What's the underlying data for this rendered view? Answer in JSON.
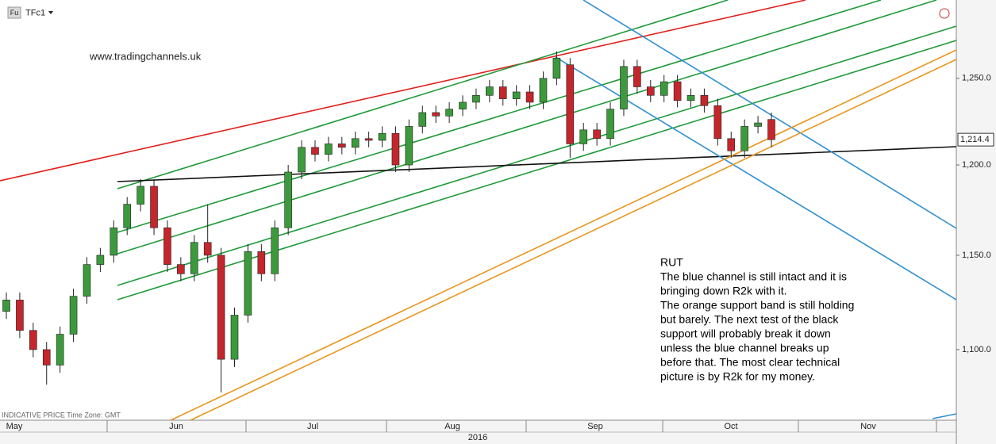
{
  "chart_data": {
    "type": "candlestick",
    "symbol_badge": "Fu",
    "symbol": "TFc1",
    "watermark": "www.tradingchannels.uk",
    "footer": "INDICATIVE PRICE   Time Zone: GMT",
    "year": "2016",
    "months": [
      "May",
      "Jun",
      "Jul",
      "Aug",
      "Sep",
      "Oct",
      "Nov"
    ],
    "annotation_lines": [
      "RUT",
      "The blue channel is still intact and it is",
      "bringing down R2k with it.",
      "The orange support band is still holding",
      "but barely. The next test of the black",
      "support will probably break it down",
      "unless the blue channel breaks up",
      "before that. The most clear technical",
      "picture is by R2k for my money."
    ],
    "open": [
      1120,
      1126,
      1110,
      1100,
      1092,
      1108,
      1128,
      1145,
      1150,
      1165,
      1178,
      1188,
      1165,
      1145,
      1140,
      1157,
      1150,
      1095,
      1118,
      1152,
      1140,
      1165,
      1196,
      1210,
      1206,
      1212,
      1210,
      1215,
      1214,
      1218,
      1200,
      1222,
      1230,
      1228,
      1232,
      1236,
      1240,
      1245,
      1238,
      1242,
      1236,
      1250,
      1258,
      1212,
      1220,
      1215,
      1232,
      1257,
      1245,
      1240,
      1248,
      1237,
      1240,
      1234,
      1215,
      1208,
      1222,
      1226
    ],
    "high": [
      1130,
      1130,
      1114,
      1104,
      1112,
      1132,
      1149,
      1154,
      1169,
      1182,
      1192,
      1192,
      1169,
      1149,
      1161,
      1178,
      1154,
      1122,
      1156,
      1156,
      1169,
      1200,
      1214,
      1214,
      1216,
      1216,
      1219,
      1219,
      1222,
      1222,
      1226,
      1234,
      1234,
      1236,
      1240,
      1244,
      1249,
      1249,
      1246,
      1246,
      1254,
      1266,
      1262,
      1224,
      1224,
      1236,
      1261,
      1261,
      1249,
      1252,
      1252,
      1244,
      1244,
      1238,
      1219,
      1226,
      1228,
      1230
    ],
    "low": [
      1116,
      1106,
      1096,
      1082,
      1088,
      1104,
      1124,
      1141,
      1146,
      1161,
      1174,
      1161,
      1141,
      1136,
      1136,
      1146,
      1078,
      1091,
      1114,
      1136,
      1136,
      1161,
      1192,
      1202,
      1202,
      1206,
      1206,
      1210,
      1210,
      1196,
      1196,
      1218,
      1224,
      1224,
      1228,
      1232,
      1236,
      1234,
      1234,
      1232,
      1232,
      1246,
      1204,
      1208,
      1211,
      1211,
      1228,
      1241,
      1236,
      1236,
      1233,
      1233,
      1230,
      1211,
      1204,
      1204,
      1218,
      1210
    ],
    "close": [
      1126,
      1110,
      1100,
      1092,
      1108,
      1128,
      1145,
      1150,
      1165,
      1178,
      1188,
      1165,
      1145,
      1140,
      1157,
      1150,
      1095,
      1118,
      1152,
      1140,
      1165,
      1196,
      1210,
      1206,
      1212,
      1210,
      1215,
      1214,
      1218,
      1200,
      1222,
      1230,
      1228,
      1232,
      1236,
      1240,
      1245,
      1238,
      1242,
      1236,
      1250,
      1262,
      1212,
      1220,
      1215,
      1232,
      1257,
      1245,
      1240,
      1248,
      1237,
      1240,
      1234,
      1215,
      1208,
      1222,
      1224,
      1214.4
    ],
    "up_color": "#3c9a3c",
    "down_color": "#c4262c",
    "last_price": {
      "value": 1214.4,
      "label": "1,214.4"
    },
    "log_scale": true,
    "grid": false,
    "ylim": [
      1064,
      1297
    ],
    "yticks": [
      {
        "value": 1100,
        "label": "1,100.0"
      },
      {
        "value": 1150,
        "label": "1,150.0"
      },
      {
        "value": 1200,
        "label": "1,200.0"
      },
      {
        "value": 1250,
        "label": "1,250.0"
      }
    ]
  }
}
